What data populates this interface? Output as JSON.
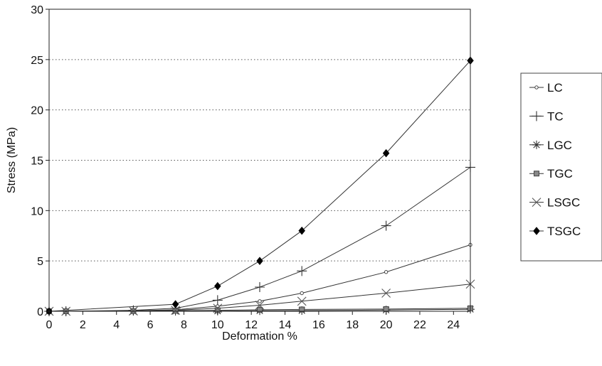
{
  "chart_data": {
    "type": "line",
    "title": "",
    "xlabel": "Deformation %",
    "ylabel": "Stress (MPa)",
    "xlim": [
      0,
      25
    ],
    "ylim": [
      0,
      30
    ],
    "xticks": [
      0,
      2,
      4,
      6,
      8,
      10,
      12,
      14,
      16,
      18,
      20,
      22,
      24
    ],
    "yticks": [
      0,
      5,
      10,
      15,
      20,
      25,
      30
    ],
    "grid": "horizontal-dotted",
    "legend_position": "right",
    "series": [
      {
        "name": "LC",
        "marker": "open-circle",
        "x": [
          0,
          1,
          5,
          7.5,
          10,
          12.5,
          15,
          20,
          25
        ],
        "y": [
          0,
          0,
          0.05,
          0.15,
          0.5,
          1.0,
          1.8,
          3.9,
          6.6
        ]
      },
      {
        "name": "TC",
        "marker": "plus",
        "x": [
          0,
          1,
          5,
          7.5,
          10,
          12.5,
          15,
          20,
          25
        ],
        "y": [
          0,
          0,
          0.1,
          0.3,
          1.1,
          2.4,
          4.0,
          8.5,
          14.3
        ]
      },
      {
        "name": "LGC",
        "marker": "asterisk",
        "x": [
          0,
          1,
          5,
          7.5,
          10,
          12.5,
          15,
          20,
          25
        ],
        "y": [
          0,
          0,
          0,
          0,
          0.02,
          0.05,
          0.07,
          0.12,
          0.2
        ]
      },
      {
        "name": "TGC",
        "marker": "filled-square",
        "x": [
          0,
          1,
          5,
          7.5,
          10,
          12.5,
          15,
          20,
          25
        ],
        "y": [
          0,
          0,
          0.02,
          0.05,
          0.1,
          0.15,
          0.18,
          0.22,
          0.3
        ]
      },
      {
        "name": "LSGC",
        "marker": "x",
        "x": [
          0,
          1,
          5,
          7.5,
          10,
          12.5,
          15,
          20,
          25
        ],
        "y": [
          0,
          0,
          0.03,
          0.1,
          0.3,
          0.6,
          1.0,
          1.8,
          2.7
        ]
      },
      {
        "name": "TSGC",
        "marker": "filled-diamond",
        "x": [
          0,
          7.5,
          10,
          12.5,
          15,
          20,
          25
        ],
        "y": [
          0,
          0.7,
          2.5,
          5.0,
          8.0,
          15.7,
          24.9
        ]
      }
    ]
  }
}
